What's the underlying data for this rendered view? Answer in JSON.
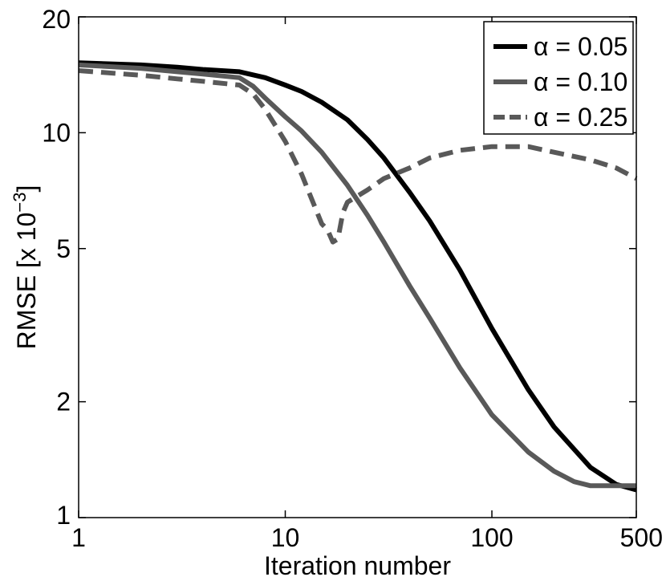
{
  "chart_data": {
    "type": "line",
    "xscale": "log",
    "yscale": "log",
    "xlim": [
      1,
      500
    ],
    "ylim": [
      1,
      20
    ],
    "xticks": [
      1,
      10,
      100,
      500
    ],
    "xtick_labels": [
      "1",
      "10",
      "100",
      "500"
    ],
    "yticks": [
      1,
      2,
      5,
      10,
      20
    ],
    "ytick_labels": [
      "1",
      "2",
      "5",
      "10",
      "20"
    ],
    "xlabel": "Iteration number",
    "ylabel": {
      "base": "RMSE [x 10",
      "exponent": "−3",
      "close": "]"
    },
    "legend_position": "top-right",
    "series": [
      {
        "name": "α = 0.05",
        "color": "#000000",
        "style": "solid",
        "x": [
          1,
          2,
          3,
          4,
          6,
          8,
          10,
          12,
          15,
          20,
          25,
          30,
          40,
          50,
          70,
          100,
          150,
          200,
          300,
          400,
          500
        ],
        "y": [
          15.2,
          15.0,
          14.8,
          14.6,
          14.4,
          13.9,
          13.3,
          12.8,
          12.0,
          10.8,
          9.6,
          8.6,
          7.0,
          5.9,
          4.4,
          3.1,
          2.15,
          1.72,
          1.35,
          1.22,
          1.18
        ]
      },
      {
        "name": "α = 0.10",
        "color": "#595959",
        "style": "solid",
        "x": [
          1,
          2,
          3,
          4,
          6,
          7,
          8,
          10,
          12,
          15,
          20,
          25,
          30,
          40,
          50,
          70,
          100,
          150,
          200,
          250,
          300,
          400,
          500
        ],
        "y": [
          15.0,
          14.7,
          14.4,
          14.2,
          13.9,
          13.2,
          12.3,
          11.0,
          10.1,
          8.9,
          7.3,
          6.1,
          5.2,
          4.0,
          3.3,
          2.45,
          1.85,
          1.48,
          1.32,
          1.24,
          1.21,
          1.21,
          1.21
        ]
      },
      {
        "name": "α = 0.25",
        "color": "#595959",
        "style": "dashed",
        "x": [
          1,
          2,
          3,
          4,
          6,
          7,
          8,
          10,
          12,
          15,
          16,
          17,
          18,
          19,
          20,
          25,
          30,
          40,
          50,
          70,
          100,
          150,
          200,
          300,
          400,
          500
        ],
        "y": [
          14.5,
          14.1,
          13.8,
          13.6,
          13.3,
          12.6,
          11.5,
          9.5,
          7.8,
          5.8,
          5.6,
          5.2,
          5.3,
          6.2,
          6.6,
          7.1,
          7.6,
          8.1,
          8.6,
          9.0,
          9.2,
          9.2,
          8.9,
          8.5,
          8.1,
          7.6
        ]
      }
    ]
  }
}
